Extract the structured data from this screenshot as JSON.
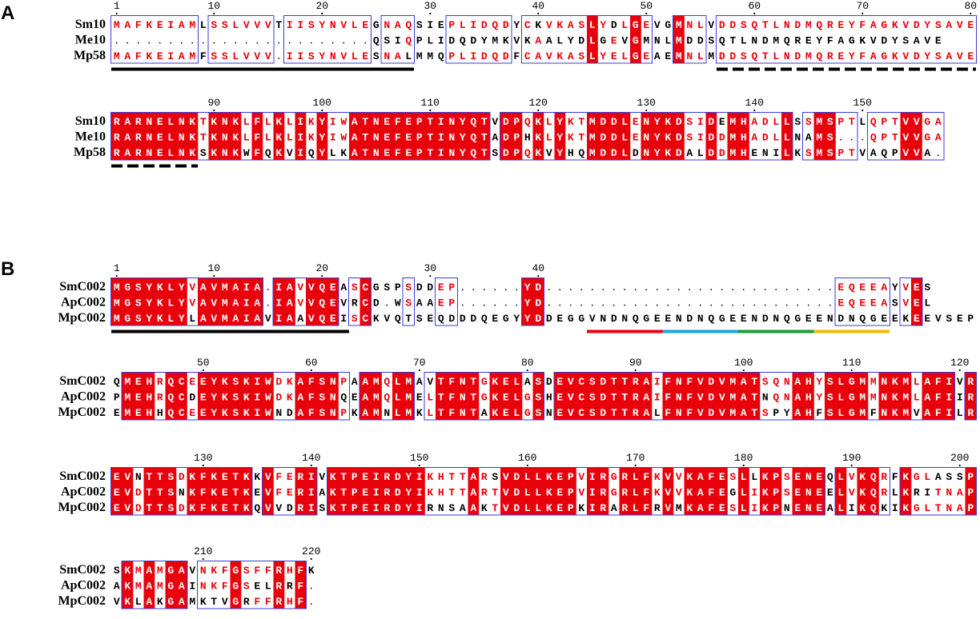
{
  "colors": {
    "identical_bg": "#e8000b",
    "identical_text": "#ffffff",
    "similar_text": "#e8000b",
    "box": "#3b3bd6",
    "default_text": "#000000",
    "motif": [
      "#e8000b",
      "#1aa3e0",
      "#1a9e3a",
      "#f2b800"
    ]
  },
  "panels": [
    {
      "label": "A",
      "blocks": [
        {
          "start": 1,
          "tick_labels": [
            "1",
            "10",
            "20",
            "30",
            "40",
            "50",
            "60",
            "70",
            "80"
          ],
          "names": [
            "Sm10",
            "Me10",
            "Mp58"
          ],
          "seqs": [
            "MAFKEIAMLSSLVVVTIISYNVLEGNAQSIEPLIDQDYCKVKASLYDLGEVGMNLVDDSQTLNDMQREYFAGKVDYSAVE",
            "........................QSIQPLIDQDYMKVKAALYDLGEVGMNLMDDSQTLNDMQREYFAGKVDYSAVE",
            "MAFKEIAMFSSLVVV.IISYNVLESNALMMQPLIDQDFCAVKASLYELGEAEMNLMDDSQTLNDMQREYFAGKVDYSAVE"
          ],
          "bars": [
            {
              "style": "solid",
              "color": "#000000",
              "from": 1,
              "to": 28
            },
            {
              "style": "dashed",
              "color": "#000000",
              "from": 57,
              "to": 80
            }
          ]
        },
        {
          "start": 81,
          "tick_labels": [
            "90",
            "100",
            "110",
            "120",
            "130",
            "140",
            "150"
          ],
          "names": [
            "Sm10",
            "Me10",
            "Mp58"
          ],
          "seqs": [
            "RARNELNKTKNKLFLKLIKYIWATNEFEPTINYQTVDPQKLYKTMDDLENYKDSIDEMHADLLSSMSPTLQPTVVGA",
            "RARNELNKTKNKLFLKLIKYIWATNEFEPTINYQTADPHKLYKTMDDLENYKDSIDDMHADLLNAMS...QPTVVGA",
            "RARNELNKSKNKWFQKVIQYLKATNEFEPTINYQTSDPQKVYHQMDDLDNYKDALDDMHENILKSMSPTVAQPVVA."
          ],
          "bars": [
            {
              "style": "dashed",
              "color": "#000000",
              "from": 81,
              "to": 88
            }
          ]
        }
      ]
    },
    {
      "label": "B",
      "blocks": [
        {
          "start": 1,
          "tick_labels": [
            "1",
            "10",
            "20",
            "30",
            "40"
          ],
          "names": [
            "SmC002",
            "ApC002",
            "MpC002"
          ],
          "seqs": [
            "MGSYKLYVAVMAIA.IAVVQEASCGSPSDDEP......YD...........................EQEEAYVES",
            "MGSYKLYVAVMAIA.IAVVQEVRCD.WSAAEP......YD...........................EQEEASVEL",
            "MGSYKLYLAVMAIAVIAAVQEISCKVQTSEQDDDQEGYYDDEGGVNDNQGEENDNQGEENDNQGEENDNQGEEKEEVSEP"
          ],
          "bars": [
            {
              "style": "solid",
              "color": "#000000",
              "from": 1,
              "to": 22
            },
            {
              "style": "solid",
              "color": "#e8000b",
              "from": 45,
              "to": 51
            },
            {
              "style": "solid",
              "color": "#1aa3e0",
              "from": 52,
              "to": 58
            },
            {
              "style": "solid",
              "color": "#1a9e3a",
              "from": 59,
              "to": 65
            },
            {
              "style": "solid",
              "color": "#f2b800",
              "from": 66,
              "to": 72
            }
          ]
        },
        {
          "start": 42,
          "tick_labels": [
            "50",
            "60",
            "70",
            "80",
            "90",
            "100",
            "110",
            "120"
          ],
          "names": [
            "SmC002",
            "ApC002",
            "MpC002"
          ],
          "seqs": [
            "QMEHRQCEEYKSKIWDKAFSNPAAMQLMAVTFNTGKELASDEVCSDTTRAIFNFVDVMATSQNAHYSLGMMNKMLAFIVR",
            "PMEHRQCDEYKSKIWDKAFSNQEAMQLMELTFNTGKELGSHEVCSDTTRAIFNFVDVMATNQNAHYSLGMMNKMLAFIIR",
            "EMEHHQCEEYKSKIWNDAFSNPKAMNLMKLTFNTAKELGSNEVCSDTTRALFNFVDVMATSPYAHFSLGMFNKMVAFILR"
          ],
          "bars": []
        },
        {
          "start": 122,
          "tick_labels": [
            "130",
            "140",
            "150",
            "160",
            "170",
            "180",
            "190",
            "200"
          ],
          "names": [
            "SmC002",
            "ApC002",
            "MpC002"
          ],
          "seqs": [
            "EVNTTSDKFKETKKVFERIVKTPEIRDYIKHTTARSVDLLKEPVIRGRLFKVVKAFESLLKPSENEQLVKQRFKGLASSP",
            "EVDTTSNKFKETKEVFERIAKTPEIRDYIKHTTARTVDLLKEPVIRGRLFKVVKAFEGLIKPSENEELVKQRLKRITNAP",
            "EVDTTSDKFKETKQVVDRISKTPEIRDYIRNSAAKTVDLLKEPKIRARLFRVMKAFESLIKPNENEALIKQKIKGLTNAP"
          ],
          "bars": []
        },
        {
          "start": 202,
          "tick_labels": [
            "210",
            "220"
          ],
          "names": [
            "SmC002",
            "ApC002",
            "MpC002"
          ],
          "seqs": [
            "SKMAMGAVNKFGSFFRHFK",
            "AKMAMGAINKFGSELRRF.",
            "VKLAKGAMKTVGRFFRHF."
          ],
          "bars": []
        }
      ]
    }
  ]
}
